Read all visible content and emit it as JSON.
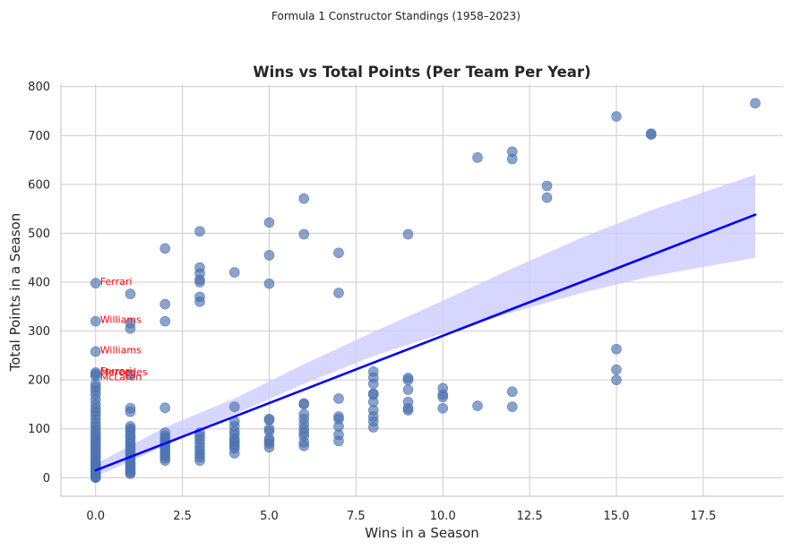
{
  "chart_data": {
    "type": "scatter",
    "suptitle": "Formula 1 Constructor Standings (1958–2023)",
    "title": "Wins vs Total Points (Per Team Per Year)",
    "xlabel": "Wins in a Season",
    "ylabel": "Total Points in a Season",
    "xlim": [
      -1,
      19.8
    ],
    "ylim": [
      -38,
      805
    ],
    "xticks": [
      0,
      2.5,
      5,
      7.5,
      10,
      12.5,
      15,
      17.5
    ],
    "xtick_labels": [
      "0.0",
      "2.5",
      "5.0",
      "7.5",
      "10.0",
      "12.5",
      "15.0",
      "17.5"
    ],
    "yticks": [
      0,
      100,
      200,
      300,
      400,
      500,
      600,
      700,
      800
    ],
    "ytick_labels": [
      "0",
      "100",
      "200",
      "300",
      "400",
      "500",
      "600",
      "700",
      "800"
    ],
    "grid": true,
    "colors": {
      "points": "#4c72b0",
      "regression": "#0000ff",
      "ci_band": "#ccccff",
      "annotation": "#ff0000",
      "grid": "#cccccc"
    },
    "points": [
      [
        0,
        398
      ],
      [
        0,
        320
      ],
      [
        0,
        258
      ],
      [
        0,
        215
      ],
      [
        0,
        212
      ],
      [
        0,
        208
      ],
      [
        0,
        192
      ],
      [
        0,
        185
      ],
      [
        0,
        178
      ],
      [
        0,
        170
      ],
      [
        0,
        160
      ],
      [
        0,
        150
      ],
      [
        0,
        142
      ],
      [
        0,
        135
      ],
      [
        0,
        128
      ],
      [
        0,
        120
      ],
      [
        0,
        112
      ],
      [
        0,
        105
      ],
      [
        0,
        98
      ],
      [
        0,
        92
      ],
      [
        0,
        86
      ],
      [
        0,
        80
      ],
      [
        0,
        75
      ],
      [
        0,
        70
      ],
      [
        0,
        65
      ],
      [
        0,
        60
      ],
      [
        0,
        55
      ],
      [
        0,
        50
      ],
      [
        0,
        45
      ],
      [
        0,
        40
      ],
      [
        0,
        35
      ],
      [
        0,
        30
      ],
      [
        0,
        26
      ],
      [
        0,
        22
      ],
      [
        0,
        18
      ],
      [
        0,
        14
      ],
      [
        0,
        10
      ],
      [
        0,
        7
      ],
      [
        0,
        4
      ],
      [
        0,
        2
      ],
      [
        0,
        1
      ],
      [
        0,
        0
      ],
      [
        1,
        376
      ],
      [
        1,
        316
      ],
      [
        1,
        305
      ],
      [
        1,
        210
      ],
      [
        1,
        142
      ],
      [
        1,
        135
      ],
      [
        1,
        105
      ],
      [
        1,
        100
      ],
      [
        1,
        95
      ],
      [
        1,
        88
      ],
      [
        1,
        82
      ],
      [
        1,
        76
      ],
      [
        1,
        70
      ],
      [
        1,
        65
      ],
      [
        1,
        60
      ],
      [
        1,
        55
      ],
      [
        1,
        50
      ],
      [
        1,
        45
      ],
      [
        1,
        40
      ],
      [
        1,
        35
      ],
      [
        1,
        30
      ],
      [
        1,
        26
      ],
      [
        1,
        22
      ],
      [
        1,
        18
      ],
      [
        1,
        14
      ],
      [
        1,
        10
      ],
      [
        1,
        8
      ],
      [
        2,
        469
      ],
      [
        2,
        355
      ],
      [
        2,
        320
      ],
      [
        2,
        143
      ],
      [
        2,
        92
      ],
      [
        2,
        85
      ],
      [
        2,
        80
      ],
      [
        2,
        75
      ],
      [
        2,
        70
      ],
      [
        2,
        65
      ],
      [
        2,
        60
      ],
      [
        2,
        55
      ],
      [
        2,
        50
      ],
      [
        2,
        45
      ],
      [
        2,
        40
      ],
      [
        2,
        35
      ],
      [
        3,
        504
      ],
      [
        3,
        430
      ],
      [
        3,
        418
      ],
      [
        3,
        405
      ],
      [
        3,
        400
      ],
      [
        3,
        370
      ],
      [
        3,
        360
      ],
      [
        3,
        92
      ],
      [
        3,
        85
      ],
      [
        3,
        78
      ],
      [
        3,
        70
      ],
      [
        3,
        62
      ],
      [
        3,
        55
      ],
      [
        3,
        48
      ],
      [
        3,
        42
      ],
      [
        3,
        35
      ],
      [
        4,
        420
      ],
      [
        4,
        145
      ],
      [
        4,
        115
      ],
      [
        4,
        105
      ],
      [
        4,
        95
      ],
      [
        4,
        88
      ],
      [
        4,
        80
      ],
      [
        4,
        75
      ],
      [
        4,
        70
      ],
      [
        4,
        65
      ],
      [
        4,
        60
      ],
      [
        4,
        50
      ],
      [
        5,
        522
      ],
      [
        5,
        455
      ],
      [
        5,
        397
      ],
      [
        5,
        120
      ],
      [
        5,
        118
      ],
      [
        5,
        100
      ],
      [
        5,
        95
      ],
      [
        5,
        80
      ],
      [
        5,
        75
      ],
      [
        5,
        70
      ],
      [
        5,
        62
      ],
      [
        6,
        571
      ],
      [
        6,
        498
      ],
      [
        6,
        152
      ],
      [
        6,
        150
      ],
      [
        6,
        130
      ],
      [
        6,
        120
      ],
      [
        6,
        110
      ],
      [
        6,
        100
      ],
      [
        6,
        92
      ],
      [
        6,
        85
      ],
      [
        6,
        72
      ],
      [
        6,
        65
      ],
      [
        7,
        460
      ],
      [
        7,
        378
      ],
      [
        7,
        162
      ],
      [
        7,
        125
      ],
      [
        7,
        120
      ],
      [
        7,
        105
      ],
      [
        7,
        88
      ],
      [
        7,
        75
      ],
      [
        8,
        217
      ],
      [
        8,
        205
      ],
      [
        8,
        192
      ],
      [
        8,
        172
      ],
      [
        8,
        170
      ],
      [
        8,
        155
      ],
      [
        8,
        138
      ],
      [
        8,
        125
      ],
      [
        8,
        115
      ],
      [
        8,
        103
      ],
      [
        9,
        498
      ],
      [
        9,
        204
      ],
      [
        9,
        200
      ],
      [
        9,
        180
      ],
      [
        9,
        155
      ],
      [
        9,
        142
      ],
      [
        9,
        138
      ],
      [
        10,
        183
      ],
      [
        10,
        170
      ],
      [
        10,
        165
      ],
      [
        10,
        142
      ],
      [
        11,
        655
      ],
      [
        11,
        147
      ],
      [
        12,
        667
      ],
      [
        12,
        652
      ],
      [
        12,
        176
      ],
      [
        12,
        145
      ],
      [
        13,
        597
      ],
      [
        13,
        573
      ],
      [
        15,
        739
      ],
      [
        15,
        263
      ],
      [
        15,
        221
      ],
      [
        15,
        200
      ],
      [
        16,
        704
      ],
      [
        16,
        702
      ],
      [
        19,
        766
      ]
    ],
    "regression": {
      "x": [
        0,
        19
      ],
      "y": [
        15,
        538
      ]
    },
    "ci_band": {
      "x": [
        0,
        2,
        4,
        6,
        8,
        10,
        12,
        14,
        16,
        19
      ],
      "lower": [
        2,
        65,
        130,
        192,
        249,
        295,
        338,
        378,
        412,
        450
      ],
      "upper": [
        28,
        103,
        162,
        232,
        298,
        362,
        428,
        491,
        547,
        620
      ]
    },
    "annotations": [
      {
        "text": "Ferrari",
        "x": 0,
        "y": 398
      },
      {
        "text": "Williams",
        "x": 0,
        "y": 320
      },
      {
        "text": "Williams",
        "x": 0,
        "y": 258
      },
      {
        "text": "Ferrari",
        "x": 0,
        "y": 215
      },
      {
        "text": "Mercedes",
        "x": 0,
        "y": 213
      },
      {
        "text": "McLaren",
        "x": 0,
        "y": 203
      }
    ]
  }
}
